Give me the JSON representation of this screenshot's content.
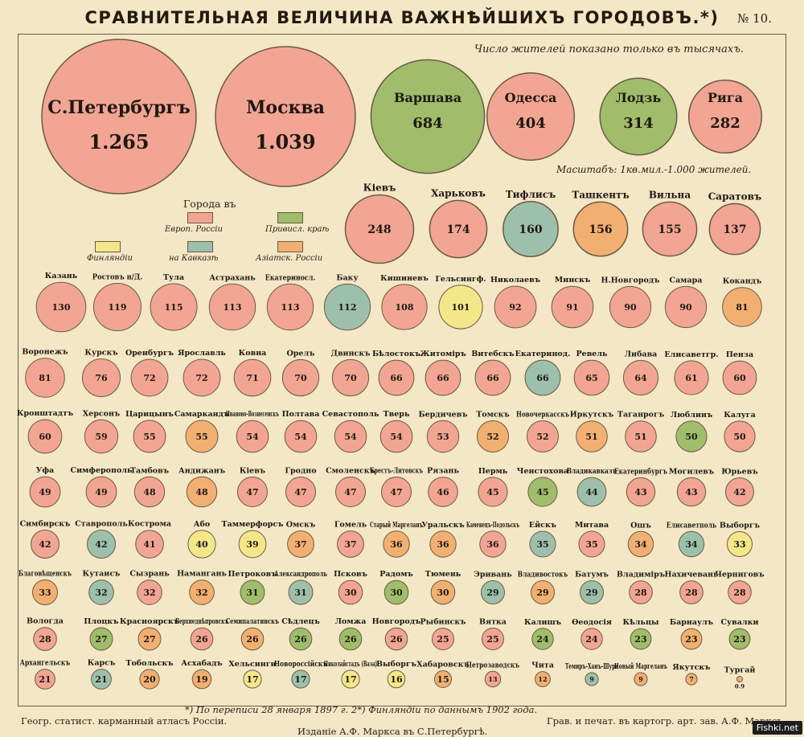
{
  "header": {
    "title": "СРАВНИТЕЛЬНАЯ ВЕЛИЧИНА ВАЖНѢЙШИХЪ ГОРОДОВЪ.*)",
    "plate_number": "№ 10."
  },
  "notes": {
    "thousands": "Число жителей показано только въ тысячахъ.",
    "scale": "Масштабъ: 1кв.мил.-1.000 жителей."
  },
  "legend": {
    "title": "Города въ",
    "items": [
      {
        "label": "Европ. Россіи",
        "color": "#f2a593"
      },
      {
        "label": "Привисл. краѣ",
        "color": "#9fbd6a"
      },
      {
        "label": "Финляндіи",
        "color": "#f4e789"
      },
      {
        "label": "на Кавказѣ",
        "color": "#9dc0ad"
      },
      {
        "label": "Азіатск. Россіи",
        "color": "#f1b071"
      }
    ]
  },
  "footer": {
    "note": "*) По переписи 28 января 1897 г.   2*) Финляндіи по даннымъ 1902 года.",
    "left": "Геогр. статист. карманный атласъ Россіи.",
    "right": "Грав. и печат. въ картогр. арт. зав. А.Ф. Марксъ",
    "publisher": "Изданіе А.Ф. Маркса въ С.Петербургѣ.",
    "badge": "Fishki.net"
  },
  "chart_data": {
    "type": "bubble",
    "unit": "thousands of inhabitants",
    "region_colors": {
      "europe": "#f2a593",
      "vistula": "#9fbd6a",
      "finland": "#f4e789",
      "caucasus": "#9dc0ad",
      "asia": "#f1b071"
    },
    "rows": [
      [
        {
          "name": "С.Петербургъ",
          "value": 1265,
          "region": "europe"
        },
        {
          "name": "Москва",
          "value": 1039,
          "region": "europe"
        },
        {
          "name": "Варшава",
          "value": 684,
          "region": "vistula"
        },
        {
          "name": "Одесса",
          "value": 404,
          "region": "europe"
        },
        {
          "name": "Лодзь",
          "value": 314,
          "region": "vistula"
        },
        {
          "name": "Рига",
          "value": 282,
          "region": "europe"
        }
      ],
      [
        {
          "name": "Кіевъ",
          "value": 248,
          "region": "europe"
        },
        {
          "name": "Харьковъ",
          "value": 174,
          "region": "europe"
        },
        {
          "name": "Тифлисъ",
          "value": 160,
          "region": "caucasus"
        },
        {
          "name": "Ташкентъ",
          "value": 156,
          "region": "asia"
        },
        {
          "name": "Вильна",
          "value": 155,
          "region": "europe"
        },
        {
          "name": "Саратовъ",
          "value": 137,
          "region": "europe"
        }
      ],
      [
        {
          "name": "Казань",
          "value": 130,
          "region": "europe"
        },
        {
          "name": "Ростовъ н/Д.",
          "value": 119,
          "region": "europe"
        },
        {
          "name": "Тула",
          "value": 115,
          "region": "europe"
        },
        {
          "name": "Астрахань",
          "value": 113,
          "region": "europe"
        },
        {
          "name": "Екатериносл.",
          "value": 113,
          "region": "europe"
        },
        {
          "name": "Баку",
          "value": 112,
          "region": "caucasus"
        },
        {
          "name": "Кишиневъ",
          "value": 108,
          "region": "europe"
        },
        {
          "name": "Гельсингф.",
          "value": 101,
          "region": "finland"
        },
        {
          "name": "Николаевъ",
          "value": 92,
          "region": "europe"
        },
        {
          "name": "Минскъ",
          "value": 91,
          "region": "europe"
        },
        {
          "name": "Н.Новгородъ",
          "value": 90,
          "region": "europe"
        },
        {
          "name": "Самара",
          "value": 90,
          "region": "europe"
        },
        {
          "name": "Кокандъ",
          "value": 81,
          "region": "asia"
        }
      ],
      [
        {
          "name": "Воронежъ",
          "value": 81,
          "region": "europe"
        },
        {
          "name": "Курскъ",
          "value": 76,
          "region": "europe"
        },
        {
          "name": "Оренбургъ",
          "value": 72,
          "region": "europe"
        },
        {
          "name": "Ярославль",
          "value": 72,
          "region": "europe"
        },
        {
          "name": "Ковна",
          "value": 71,
          "region": "europe"
        },
        {
          "name": "Орелъ",
          "value": 70,
          "region": "europe"
        },
        {
          "name": "Двинскъ",
          "value": 70,
          "region": "europe"
        },
        {
          "name": "Бѣлостокъ",
          "value": 66,
          "region": "europe"
        },
        {
          "name": "Житоміръ",
          "value": 66,
          "region": "europe"
        },
        {
          "name": "Витебскъ",
          "value": 66,
          "region": "europe"
        },
        {
          "name": "Екатеринод.",
          "value": 66,
          "region": "caucasus"
        },
        {
          "name": "Ревель",
          "value": 65,
          "region": "europe"
        },
        {
          "name": "Либава",
          "value": 64,
          "region": "europe"
        },
        {
          "name": "Елисаветгр.",
          "value": 61,
          "region": "europe"
        },
        {
          "name": "Пенза",
          "value": 60,
          "region": "europe"
        }
      ],
      [
        {
          "name": "Кронштадтъ",
          "value": 60,
          "region": "europe"
        },
        {
          "name": "Херсонъ",
          "value": 59,
          "region": "europe"
        },
        {
          "name": "Царицынъ",
          "value": 55,
          "region": "europe"
        },
        {
          "name": "Самаркандъ",
          "value": 55,
          "region": "asia"
        },
        {
          "name": "Иваново-Вознесенскъ",
          "value": 54,
          "region": "europe"
        },
        {
          "name": "Полтава",
          "value": 54,
          "region": "europe"
        },
        {
          "name": "Севастополь",
          "value": 54,
          "region": "europe"
        },
        {
          "name": "Тверь",
          "value": 54,
          "region": "europe"
        },
        {
          "name": "Бердичевъ",
          "value": 53,
          "region": "europe"
        },
        {
          "name": "Томскъ",
          "value": 52,
          "region": "asia"
        },
        {
          "name": "Новочеркасскъ",
          "value": 52,
          "region": "europe"
        },
        {
          "name": "Иркутскъ",
          "value": 51,
          "region": "asia"
        },
        {
          "name": "Таганрогъ",
          "value": 51,
          "region": "europe"
        },
        {
          "name": "Люблинъ",
          "value": 50,
          "region": "vistula"
        },
        {
          "name": "Калуга",
          "value": 50,
          "region": "europe"
        }
      ],
      [
        {
          "name": "Уфа",
          "value": 49,
          "region": "europe"
        },
        {
          "name": "Симферополь",
          "value": 49,
          "region": "europe"
        },
        {
          "name": "Тамбовъ",
          "value": 48,
          "region": "europe"
        },
        {
          "name": "Андижанъ",
          "value": 48,
          "region": "asia"
        },
        {
          "name": "Кіевъ",
          "value": 47,
          "region": "europe"
        },
        {
          "name": "Гродно",
          "value": 47,
          "region": "europe"
        },
        {
          "name": "Смоленскъ",
          "value": 47,
          "region": "europe"
        },
        {
          "name": "Брестъ-Литовскъ",
          "value": 47,
          "region": "europe"
        },
        {
          "name": "Рязань",
          "value": 46,
          "region": "europe"
        },
        {
          "name": "Пермь",
          "value": 45,
          "region": "europe"
        },
        {
          "name": "Ченстохова",
          "value": 45,
          "region": "vistula"
        },
        {
          "name": "Владикавказъ",
          "value": 44,
          "region": "caucasus"
        },
        {
          "name": "Екатеринбургъ",
          "value": 43,
          "region": "europe"
        },
        {
          "name": "Могилевъ",
          "value": 43,
          "region": "europe"
        },
        {
          "name": "Юрьевъ",
          "value": 42,
          "region": "europe"
        }
      ],
      [
        {
          "name": "Симбирскъ",
          "value": 42,
          "region": "europe"
        },
        {
          "name": "Ставрополь",
          "value": 42,
          "region": "caucasus"
        },
        {
          "name": "Кострома",
          "value": 41,
          "region": "europe"
        },
        {
          "name": "Або",
          "value": 40,
          "region": "finland"
        },
        {
          "name": "Таммерфорсъ",
          "value": 39,
          "region": "finland"
        },
        {
          "name": "Омскъ",
          "value": 37,
          "region": "asia"
        },
        {
          "name": "Гомель",
          "value": 37,
          "region": "europe"
        },
        {
          "name": "Старый Маргеланъ",
          "value": 36,
          "region": "asia"
        },
        {
          "name": "Уральскъ",
          "value": 36,
          "region": "asia"
        },
        {
          "name": "Каменецъ-Подольскъ",
          "value": 36,
          "region": "europe"
        },
        {
          "name": "Ейскъ",
          "value": 35,
          "region": "caucasus"
        },
        {
          "name": "Митава",
          "value": 35,
          "region": "europe"
        },
        {
          "name": "Ошъ",
          "value": 34,
          "region": "asia"
        },
        {
          "name": "Елисаветполь",
          "value": 34,
          "region": "caucasus"
        },
        {
          "name": "Выборгъ",
          "value": 33,
          "region": "finland"
        }
      ],
      [
        {
          "name": "Благовѣщенскъ",
          "value": 33,
          "region": "asia"
        },
        {
          "name": "Кутаисъ",
          "value": 32,
          "region": "caucasus"
        },
        {
          "name": "Сызрань",
          "value": 32,
          "region": "europe"
        },
        {
          "name": "Намангань",
          "value": 32,
          "region": "asia"
        },
        {
          "name": "Петроковъ",
          "value": 31,
          "region": "vistula"
        },
        {
          "name": "Александрополь",
          "value": 31,
          "region": "caucasus"
        },
        {
          "name": "Псковъ",
          "value": 30,
          "region": "europe"
        },
        {
          "name": "Радомъ",
          "value": 30,
          "region": "vistula"
        },
        {
          "name": "Тюмень",
          "value": 30,
          "region": "asia"
        },
        {
          "name": "Эривань",
          "value": 29,
          "region": "caucasus"
        },
        {
          "name": "Владивостокъ",
          "value": 29,
          "region": "asia"
        },
        {
          "name": "Батумъ",
          "value": 29,
          "region": "caucasus"
        },
        {
          "name": "Владиміръ",
          "value": 28,
          "region": "europe"
        },
        {
          "name": "Нахичевань",
          "value": 28,
          "region": "europe"
        },
        {
          "name": "Черниговъ",
          "value": 28,
          "region": "europe"
        }
      ],
      [
        {
          "name": "Вологда",
          "value": 28,
          "region": "europe"
        },
        {
          "name": "Плоцкъ",
          "value": 27,
          "region": "vistula"
        },
        {
          "name": "Красноярскъ",
          "value": 27,
          "region": "asia"
        },
        {
          "name": "Верхнеднѣпровскъ",
          "value": 26,
          "region": "europe"
        },
        {
          "name": "Семипалатинскъ",
          "value": 26,
          "region": "asia"
        },
        {
          "name": "Сѣдлецъ",
          "value": 26,
          "region": "vistula"
        },
        {
          "name": "Ломжа",
          "value": 26,
          "region": "vistula"
        },
        {
          "name": "Новгородъ",
          "value": 26,
          "region": "europe"
        },
        {
          "name": "Рыбинскъ",
          "value": 25,
          "region": "europe"
        },
        {
          "name": "Вятка",
          "value": 25,
          "region": "europe"
        },
        {
          "name": "Калишъ",
          "value": 24,
          "region": "vistula"
        },
        {
          "name": "Өеодосія",
          "value": 24,
          "region": "europe"
        },
        {
          "name": "Кѣльцы",
          "value": 23,
          "region": "vistula"
        },
        {
          "name": "Барнаулъ",
          "value": 23,
          "region": "asia"
        },
        {
          "name": "Сувалки",
          "value": 23,
          "region": "vistula"
        }
      ],
      [
        {
          "name": "Архангельскъ",
          "value": 21,
          "region": "europe"
        },
        {
          "name": "Карсъ",
          "value": 21,
          "region": "caucasus"
        },
        {
          "name": "Тобольскъ",
          "value": 20,
          "region": "asia"
        },
        {
          "name": "Асхабадъ",
          "value": 19,
          "region": "asia"
        },
        {
          "name": "Хельсинги",
          "value": 17,
          "region": "finland"
        },
        {
          "name": "Новороссійскъ",
          "value": 17,
          "region": "caucasus"
        },
        {
          "name": "Николайстадъ (Ваза)",
          "value": 17,
          "region": "finland"
        },
        {
          "name": "Выборгъ",
          "value": 16,
          "region": "finland"
        },
        {
          "name": "Хабаровскъ",
          "value": 15,
          "region": "asia"
        },
        {
          "name": "Петрозаводскъ",
          "value": 13,
          "region": "europe"
        },
        {
          "name": "Чита",
          "value": 12,
          "region": "asia"
        },
        {
          "name": "Темиръ-Ханъ-Шура",
          "value": 9,
          "region": "caucasus"
        },
        {
          "name": "Новый Маргеланъ",
          "value": 9,
          "region": "asia"
        },
        {
          "name": "Якутскъ",
          "value": 7,
          "region": "asia"
        },
        {
          "name": "Тургай",
          "value": 0.9,
          "region": "asia"
        }
      ]
    ]
  }
}
